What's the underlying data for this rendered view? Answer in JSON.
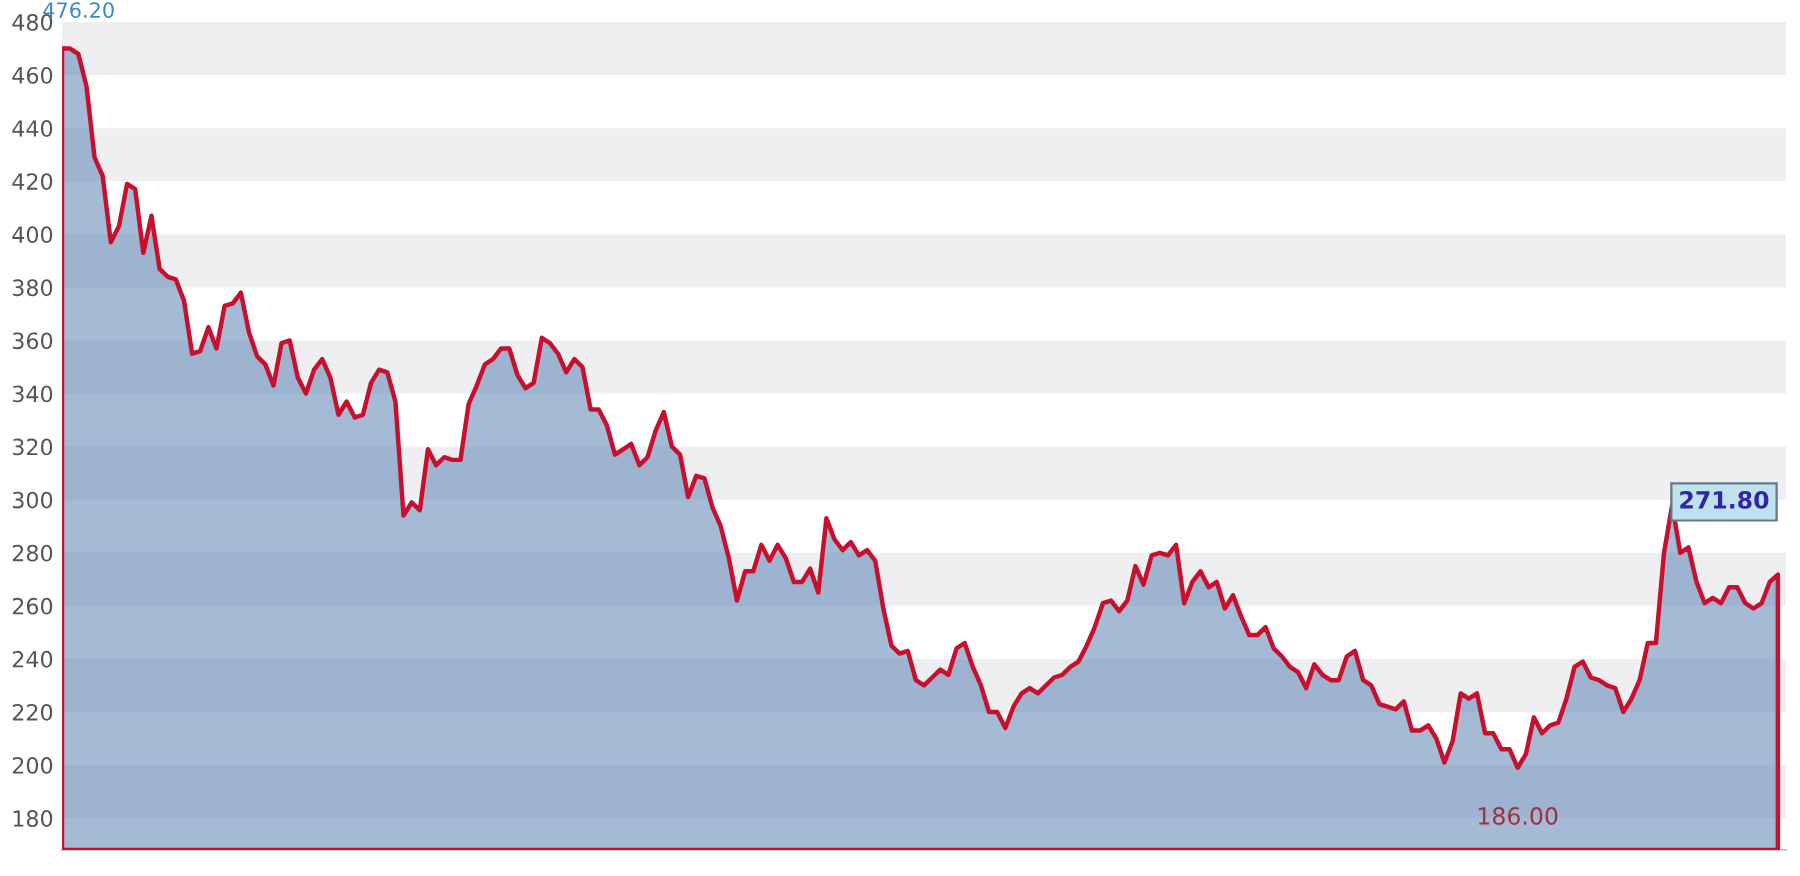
{
  "chart_data": {
    "type": "area",
    "categories": [
      null,
      null,
      null,
      null,
      null,
      null,
      null,
      null,
      null,
      null,
      null,
      null,
      null,
      null,
      null,
      null,
      null,
      null,
      null,
      null,
      null,
      null,
      null,
      null,
      null,
      null,
      null,
      null,
      null,
      null,
      null,
      null,
      null,
      null,
      null,
      null,
      null,
      null,
      null,
      null,
      null,
      null,
      null,
      null,
      null,
      null,
      null,
      null,
      null,
      null,
      null,
      null,
      null,
      null,
      null,
      null,
      null,
      null,
      null,
      null,
      null,
      null,
      null,
      null,
      null,
      null,
      null,
      null,
      null,
      null,
      null,
      null,
      null,
      null,
      null,
      null,
      null,
      null,
      null,
      null,
      null,
      null,
      null,
      null,
      null,
      null,
      null,
      null,
      null,
      null,
      null,
      null,
      null,
      null,
      null,
      null,
      null,
      null,
      null,
      null,
      null,
      null,
      null,
      null,
      null,
      null,
      null,
      null,
      null,
      null,
      null,
      null,
      null,
      null,
      null,
      null,
      null,
      null,
      null,
      null,
      null,
      null,
      null,
      null,
      null,
      null,
      null,
      null,
      null,
      null,
      null,
      null,
      null,
      null,
      null,
      null,
      null,
      null,
      null,
      null,
      null,
      null,
      null,
      null,
      null,
      null,
      null,
      null,
      null,
      null,
      null,
      null,
      null,
      null,
      null,
      null,
      null,
      null,
      null,
      null,
      null,
      null,
      null,
      null,
      null,
      null,
      null,
      null,
      null,
      null,
      null,
      null,
      null,
      null,
      null,
      null,
      null,
      null,
      null,
      null,
      null,
      null,
      null,
      null,
      null,
      null,
      null,
      null,
      null,
      null,
      null,
      null,
      null,
      null,
      null,
      null,
      null,
      null,
      null,
      null,
      null,
      null,
      null,
      null,
      null,
      null,
      null,
      null,
      null,
      null,
      null,
      null
    ],
    "series": [
      {
        "color": "#c8102e",
        "values": [
          470,
          470,
          468,
          456,
          429,
          422,
          397,
          403,
          419,
          417,
          393,
          407,
          387,
          384,
          383,
          375,
          355,
          356,
          365,
          357,
          373,
          374,
          378,
          363,
          354,
          351,
          343,
          359,
          360,
          346,
          340,
          349,
          353,
          346,
          332,
          337,
          331,
          332,
          344,
          349,
          348,
          337,
          294,
          299,
          296,
          319,
          313,
          316,
          315,
          315,
          336,
          343,
          351,
          353,
          357,
          357,
          347,
          342,
          344,
          361,
          359,
          355,
          348,
          353,
          350,
          334,
          334,
          328,
          317,
          319,
          321,
          313,
          316,
          326,
          333,
          320,
          317,
          301,
          309,
          308,
          297,
          290,
          278,
          262,
          273,
          273,
          283,
          277,
          283,
          278,
          269,
          269,
          274,
          265,
          293,
          285,
          281,
          284,
          279,
          281,
          277,
          259,
          245,
          242,
          243,
          232,
          230,
          233,
          236,
          234,
          244,
          246,
          237,
          230,
          220,
          220,
          214,
          222,
          227,
          229,
          227,
          230,
          233,
          234,
          237,
          239,
          245,
          252,
          261,
          262,
          258,
          262,
          275,
          268,
          279,
          280,
          279,
          283,
          261,
          269,
          273,
          267,
          269,
          259,
          264,
          256,
          249,
          249,
          252,
          244,
          241,
          237,
          235,
          229,
          238,
          234,
          232,
          232,
          241,
          243,
          232,
          230,
          223,
          222,
          221,
          224,
          213,
          213,
          215,
          210,
          201,
          209,
          227,
          225,
          227,
          212,
          212,
          206,
          206,
          199,
          204,
          218,
          212,
          215,
          216,
          225,
          237,
          239,
          233,
          232,
          230,
          229,
          220,
          225,
          232,
          246,
          246,
          280,
          298,
          280,
          282,
          269,
          261,
          263,
          261,
          267,
          267,
          261,
          259,
          261,
          269,
          271.8
        ]
      }
    ],
    "ylim": [
      168,
      480
    ],
    "yticks": [
      180,
      200,
      220,
      240,
      260,
      280,
      300,
      320,
      340,
      360,
      380,
      400,
      420,
      440,
      460,
      480
    ],
    "bands": [
      {
        "axis": "y",
        "from": 460,
        "to": 480,
        "color": "#efeff1"
      },
      {
        "axis": "y",
        "from": 420,
        "to": 440,
        "color": "#efeff1"
      },
      {
        "axis": "y",
        "from": 380,
        "to": 400,
        "color": "#efeff1"
      },
      {
        "axis": "y",
        "from": 340,
        "to": 360,
        "color": "#efeff1"
      },
      {
        "axis": "y",
        "from": 300,
        "to": 320,
        "color": "#efeff1"
      },
      {
        "axis": "y",
        "from": 260,
        "to": 280,
        "color": "#efeff1"
      },
      {
        "axis": "y",
        "from": 220,
        "to": 240,
        "color": "#efeff1"
      },
      {
        "axis": "y",
        "from": 180,
        "to": 200,
        "color": "#efeff1"
      }
    ],
    "annotations": [
      "476.20",
      "186.00",
      "271.80"
    ]
  }
}
